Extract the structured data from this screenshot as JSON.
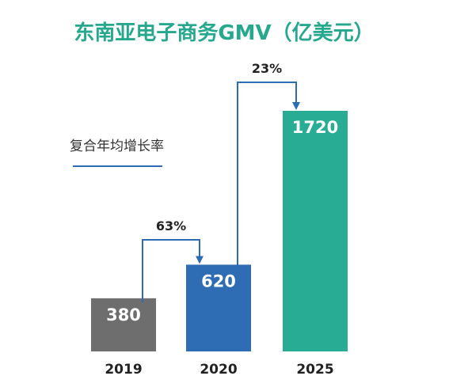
{
  "colors": {
    "title": "#26a88e",
    "arrow": "#2d6bb5",
    "text_dark": "#222222",
    "bar_label": "#ffffff",
    "bar_2019": "#6e6e6e",
    "bar_2020": "#2e6db4",
    "bar_2025": "#28ad94"
  },
  "chart_data": {
    "type": "bar",
    "title": "东南亚电子商务GMV（亿美元）",
    "categories": [
      "2019",
      "2020",
      "2025"
    ],
    "values": [
      380,
      620,
      1720
    ],
    "ylim": [
      0,
      1720
    ],
    "legend": {
      "label": "复合年均增长率",
      "placement": "left"
    },
    "growth": [
      {
        "from": "2019",
        "to": "2020",
        "label": "63%"
      },
      {
        "from": "2020",
        "to": "2025",
        "label": "23%"
      }
    ],
    "grid": false
  }
}
